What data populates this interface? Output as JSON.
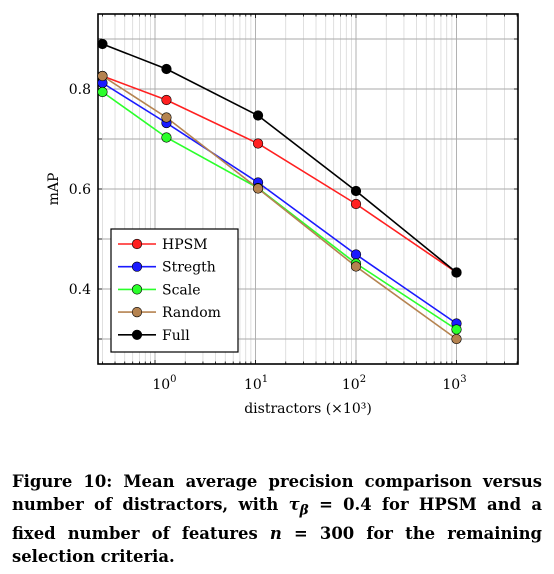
{
  "chart_data": {
    "type": "line",
    "xlabel": "distractors (×10³)",
    "ylabel": "mAP",
    "x_scale": "log",
    "x_ticks": [
      {
        "value": 1.3,
        "base": "10",
        "exp": "0"
      },
      {
        "value": 10.6,
        "base": "10",
        "exp": "1"
      },
      {
        "value": 100,
        "base": "10",
        "exp": "2"
      },
      {
        "value": 1000,
        "base": "10",
        "exp": "3"
      }
    ],
    "y_ticks": [
      "0.4",
      "0.6",
      "0.8"
    ],
    "ylim": [
      0.25,
      0.95
    ],
    "grid": true,
    "legend_position": "bottom-left",
    "x": [
      0.3,
      1.3,
      10.6,
      100,
      1000
    ],
    "series": [
      {
        "name": "HPSM",
        "color": "#ff2020",
        "values": [
          0.826,
          0.778,
          0.691,
          0.57,
          0.433
        ]
      },
      {
        "name": "Stregth",
        "color": "#1a1aff",
        "values": [
          0.812,
          0.732,
          0.613,
          0.469,
          0.331
        ]
      },
      {
        "name": "Scale",
        "color": "#2bff2b",
        "values": [
          0.794,
          0.703,
          0.602,
          0.451,
          0.319
        ]
      },
      {
        "name": "Random",
        "color": "#b58350",
        "values": [
          0.826,
          0.743,
          0.601,
          0.445,
          0.3
        ]
      },
      {
        "name": "Full",
        "color": "#000000",
        "values": [
          0.89,
          0.84,
          0.747,
          0.596,
          0.433
        ]
      }
    ]
  },
  "caption": {
    "prefix": "Figure 10: Mean average precision comparison versus number of distractors, with ",
    "tau": "τ",
    "tau_sub": "β",
    "tau_value": " = 0.4",
    "middle": " for HPSM and a fixed number of features ",
    "n": "n",
    "n_value": " = 300",
    "suffix": " for the remaining selection criteria."
  }
}
